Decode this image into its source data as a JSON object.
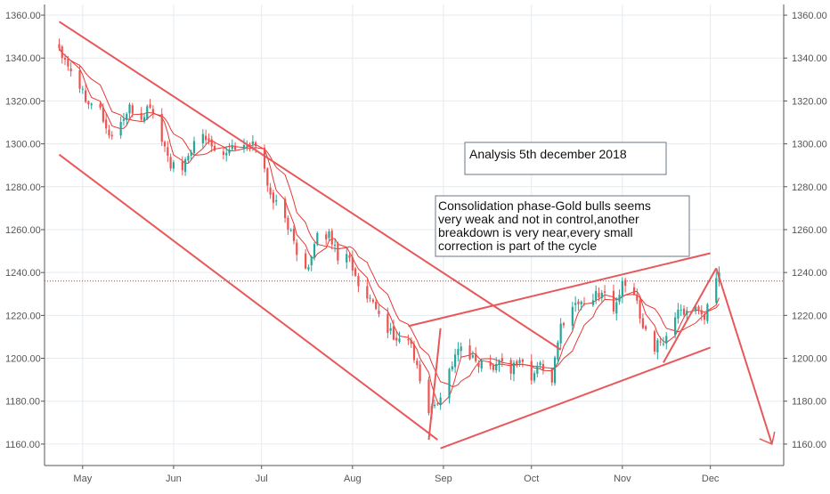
{
  "chart_data": {
    "type": "candlestick",
    "title": "",
    "xlabel": "",
    "ylabel": "",
    "ylim": [
      1150,
      1365
    ],
    "y_ticks": [
      "1160.00",
      "1180.00",
      "1200.00",
      "1220.00",
      "1240.00",
      "1260.00",
      "1280.00",
      "1300.00",
      "1320.00",
      "1340.00",
      "1360.00"
    ],
    "x_ticks": [
      {
        "label": "May",
        "date": "2018-05-01"
      },
      {
        "label": "Jun",
        "date": "2018-06-01"
      },
      {
        "label": "Jul",
        "date": "2018-07-01"
      },
      {
        "label": "Aug",
        "date": "2018-08-01"
      },
      {
        "label": "Sep",
        "date": "2018-09-01"
      },
      {
        "label": "Oct",
        "date": "2018-10-01"
      },
      {
        "label": "Nov",
        "date": "2018-11-01"
      },
      {
        "label": "Dec",
        "date": "2018-12-01"
      }
    ],
    "grid": true,
    "y_axis_both_sides": true,
    "colors": {
      "up": "#26a69a",
      "down": "#ef5350",
      "trendline": "#e8585a",
      "grid": "#e6ebef",
      "axis_text": "#555555",
      "ma": "#e53935"
    },
    "reference_level": 1236,
    "closes": [
      {
        "date": "2018-04-23",
        "close": 1345
      },
      {
        "date": "2018-04-27",
        "close": 1335
      },
      {
        "date": "2018-05-02",
        "close": 1322
      },
      {
        "date": "2018-05-07",
        "close": 1316
      },
      {
        "date": "2018-05-10",
        "close": 1303
      },
      {
        "date": "2018-05-14",
        "close": 1310
      },
      {
        "date": "2018-05-17",
        "close": 1316
      },
      {
        "date": "2018-05-21",
        "close": 1312
      },
      {
        "date": "2018-05-24",
        "close": 1318
      },
      {
        "date": "2018-05-28",
        "close": 1302
      },
      {
        "date": "2018-05-31",
        "close": 1290
      },
      {
        "date": "2018-06-04",
        "close": 1287
      },
      {
        "date": "2018-06-07",
        "close": 1298
      },
      {
        "date": "2018-06-11",
        "close": 1303
      },
      {
        "date": "2018-06-14",
        "close": 1300
      },
      {
        "date": "2018-06-18",
        "close": 1296
      },
      {
        "date": "2018-06-21",
        "close": 1299
      },
      {
        "date": "2018-06-25",
        "close": 1298
      },
      {
        "date": "2018-06-28",
        "close": 1300
      },
      {
        "date": "2018-06-30",
        "close": 1302
      },
      {
        "date": "2018-07-03",
        "close": 1280
      },
      {
        "date": "2018-07-06",
        "close": 1272
      },
      {
        "date": "2018-07-10",
        "close": 1262
      },
      {
        "date": "2018-07-13",
        "close": 1250
      },
      {
        "date": "2018-07-17",
        "close": 1242
      },
      {
        "date": "2018-07-20",
        "close": 1256
      },
      {
        "date": "2018-07-24",
        "close": 1258
      },
      {
        "date": "2018-07-27",
        "close": 1248
      },
      {
        "date": "2018-07-31",
        "close": 1248
      },
      {
        "date": "2018-08-03",
        "close": 1232
      },
      {
        "date": "2018-08-07",
        "close": 1226
      },
      {
        "date": "2018-08-10",
        "close": 1220
      },
      {
        "date": "2018-08-14",
        "close": 1212
      },
      {
        "date": "2018-08-16",
        "close": 1208
      },
      {
        "date": "2018-08-20",
        "close": 1210
      },
      {
        "date": "2018-08-23",
        "close": 1195
      },
      {
        "date": "2018-08-27",
        "close": 1175
      },
      {
        "date": "2018-08-30",
        "close": 1180
      },
      {
        "date": "2018-09-03",
        "close": 1194
      },
      {
        "date": "2018-09-06",
        "close": 1205
      },
      {
        "date": "2018-09-10",
        "close": 1200
      },
      {
        "date": "2018-09-13",
        "close": 1198
      },
      {
        "date": "2018-09-17",
        "close": 1196
      },
      {
        "date": "2018-09-20",
        "close": 1199
      },
      {
        "date": "2018-09-24",
        "close": 1195
      },
      {
        "date": "2018-09-27",
        "close": 1200
      },
      {
        "date": "2018-10-01",
        "close": 1190
      },
      {
        "date": "2018-10-04",
        "close": 1198
      },
      {
        "date": "2018-10-08",
        "close": 1190
      },
      {
        "date": "2018-10-11",
        "close": 1215
      },
      {
        "date": "2018-10-15",
        "close": 1225
      },
      {
        "date": "2018-10-18",
        "close": 1226
      },
      {
        "date": "2018-10-22",
        "close": 1228
      },
      {
        "date": "2018-10-25",
        "close": 1232
      },
      {
        "date": "2018-10-29",
        "close": 1222
      },
      {
        "date": "2018-11-01",
        "close": 1234
      },
      {
        "date": "2018-11-05",
        "close": 1230
      },
      {
        "date": "2018-11-08",
        "close": 1216
      },
      {
        "date": "2018-11-12",
        "close": 1205
      },
      {
        "date": "2018-11-15",
        "close": 1208
      },
      {
        "date": "2018-11-19",
        "close": 1220
      },
      {
        "date": "2018-11-22",
        "close": 1222
      },
      {
        "date": "2018-11-26",
        "close": 1224
      },
      {
        "date": "2018-11-29",
        "close": 1220
      },
      {
        "date": "2018-12-03",
        "close": 1235
      },
      {
        "date": "2018-12-04",
        "close": 1238
      }
    ],
    "trendlines": [
      {
        "from": {
          "date": "2018-04-23",
          "value": 1357
        },
        "to": {
          "date": "2018-10-11",
          "value": 1204
        }
      },
      {
        "from": {
          "date": "2018-04-23",
          "value": 1295
        },
        "to": {
          "date": "2018-08-30",
          "value": 1162
        }
      },
      {
        "from": {
          "date": "2018-08-20",
          "value": 1215
        },
        "to": {
          "date": "2018-12-01",
          "value": 1249
        }
      },
      {
        "from": {
          "date": "2018-08-31",
          "value": 1158
        },
        "to": {
          "date": "2018-12-01",
          "value": 1205
        }
      },
      {
        "from": {
          "date": "2018-08-27",
          "value": 1162
        },
        "to": {
          "date": "2018-08-31",
          "value": 1214
        }
      },
      {
        "from": {
          "date": "2018-11-15",
          "value": 1198
        },
        "to": {
          "date": "2018-12-03",
          "value": 1242
        }
      },
      {
        "from": {
          "date": "2018-12-03",
          "value": 1242
        },
        "to": {
          "date": "2018-12-22",
          "value": 1160
        }
      }
    ],
    "annotations": [
      {
        "id": "analysis-date",
        "text": "Analysis 5th december 2018"
      },
      {
        "id": "commentary",
        "text": "Consolidation phase-Gold bulls seems very weak and not in control,another breakdown is very near,every small correction is part of the cycle",
        "lines": [
          "Consolidation phase-Gold bulls seems",
          "very weak and not in control,another",
          "breakdown is very near,every small",
          "correction is part of the cycle"
        ]
      }
    ]
  }
}
